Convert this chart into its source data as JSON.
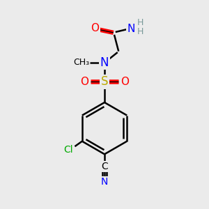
{
  "bg_color": "#ebebeb",
  "atom_colors": {
    "C": "#000000",
    "N": "#0000ff",
    "O": "#ff0000",
    "S": "#bbaa00",
    "Cl": "#00aa00",
    "H": "#7a9a9a"
  },
  "bond_color": "#000000",
  "bond_lw": 1.8,
  "figsize": [
    3.0,
    3.0
  ],
  "dpi": 100
}
